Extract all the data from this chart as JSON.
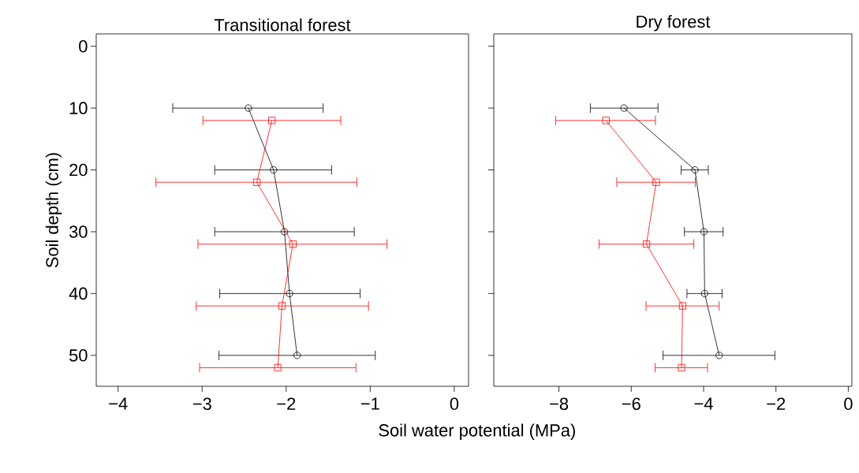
{
  "chart_data": [
    {
      "type": "line",
      "title": "Transitional forest",
      "xlabel": "Soil water potential (MPa)",
      "ylabel": "Soil depth (cm)",
      "xlim": [
        -4.26,
        0.17
      ],
      "ylim": [
        55,
        -2
      ],
      "xticks": [
        {
          "value": -4,
          "label": "−4"
        },
        {
          "value": -3,
          "label": "−3"
        },
        {
          "value": -2,
          "label": "−2"
        },
        {
          "value": -1,
          "label": "−1"
        },
        0
      ],
      "yticks": [
        0,
        10,
        20,
        30,
        40,
        50
      ],
      "grid": false,
      "series": [
        {
          "color": "#000000",
          "marker": "circle",
          "x": [
            -2.45,
            -2.15,
            -2.02,
            -1.96,
            -1.87
          ],
          "values": [
            10,
            20,
            30,
            40,
            50
          ],
          "xerrors": [
            [
              -3.35,
              -1.56
            ],
            [
              -2.85,
              -1.46
            ],
            [
              -2.85,
              -1.19
            ],
            [
              -2.79,
              -1.12
            ],
            [
              -2.8,
              -0.94
            ]
          ]
        },
        {
          "color": "#ff0000",
          "marker": "square",
          "x": [
            -2.17,
            -2.35,
            -1.92,
            -2.05,
            -2.1
          ],
          "values": [
            12,
            22,
            32,
            42,
            52
          ],
          "xerrors": [
            [
              -2.99,
              -1.35
            ],
            [
              -3.55,
              -1.16
            ],
            [
              -3.05,
              -0.8
            ],
            [
              -3.07,
              -1.02
            ],
            [
              -3.03,
              -1.17
            ]
          ]
        }
      ]
    },
    {
      "type": "line",
      "title": "Dry forest",
      "xlim": [
        -9.8,
        0.1
      ],
      "ylim": [
        55,
        -2
      ],
      "xticks": [
        {
          "value": -8,
          "label": "−8"
        },
        {
          "value": -6,
          "label": "−6"
        },
        {
          "value": -4,
          "label": "−4"
        },
        {
          "value": -2,
          "label": "−2"
        },
        0
      ],
      "yticks": [
        0,
        10,
        20,
        30,
        40,
        50
      ],
      "tick_labels": "x",
      "grid": false,
      "series": [
        {
          "color": "#000000",
          "marker": "circle",
          "x": [
            -6.2,
            -4.24,
            -3.99,
            -3.97,
            -3.57
          ],
          "values": [
            10,
            20,
            30,
            40,
            50
          ],
          "xerrors": [
            [
              -7.13,
              -5.26
            ],
            [
              -4.62,
              -3.87
            ],
            [
              -4.53,
              -3.46
            ],
            [
              -4.46,
              -3.49
            ],
            [
              -5.12,
              -2.03
            ]
          ]
        },
        {
          "color": "#ff0000",
          "marker": "square",
          "x": [
            -6.7,
            -5.31,
            -5.58,
            -4.58,
            -4.61
          ],
          "values": [
            12,
            22,
            32,
            42,
            52
          ],
          "xerrors": [
            [
              -8.09,
              -5.33
            ],
            [
              -6.4,
              -4.23
            ],
            [
              -6.89,
              -4.27
            ],
            [
              -5.59,
              -3.57
            ],
            [
              -5.34,
              -3.89
            ]
          ]
        }
      ]
    }
  ]
}
